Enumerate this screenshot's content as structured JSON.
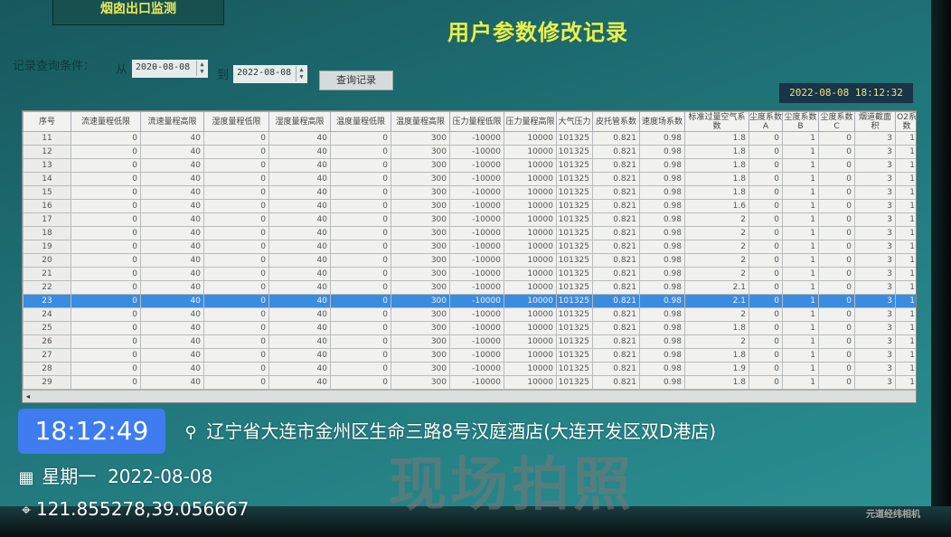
{
  "app": {
    "top_button": "烟囱出口监测",
    "title": "用户参数修改记录",
    "clock": "2022-08-08 18:12:32"
  },
  "query": {
    "label": "记录查询条件：",
    "from_label": "从",
    "from_date": "2020-08-08",
    "to_label": "到",
    "to_date": "2022-08-08",
    "button": "查询记录"
  },
  "table": {
    "headers": [
      "序号",
      "流速量程低限",
      "流速量程高限",
      "湿度量程低限",
      "湿度量程高限",
      "温度量程低限",
      "温度量程高限",
      "压力量程低限",
      "压力量程高限",
      "大气压力",
      "皮托管系数",
      "速度场系数",
      "标准过量空气系数",
      "尘度系数A",
      "尘度系数B",
      "尘度系数C",
      "烟道截面积",
      "O2系数"
    ],
    "selected_row": "23",
    "rows": [
      [
        "11",
        "0",
        "40",
        "0",
        "40",
        "0",
        "300",
        "-10000",
        "10000",
        "101325",
        "0.821",
        "0.98",
        "1.8",
        "0",
        "1",
        "0",
        "3",
        "1"
      ],
      [
        "12",
        "0",
        "40",
        "0",
        "40",
        "0",
        "300",
        "-10000",
        "10000",
        "101325",
        "0.821",
        "0.98",
        "1.8",
        "0",
        "1",
        "0",
        "3",
        "1"
      ],
      [
        "13",
        "0",
        "40",
        "0",
        "40",
        "0",
        "300",
        "-10000",
        "10000",
        "101325",
        "0.821",
        "0.98",
        "1.8",
        "0",
        "1",
        "0",
        "3",
        "1"
      ],
      [
        "14",
        "0",
        "40",
        "0",
        "40",
        "0",
        "300",
        "-10000",
        "10000",
        "101325",
        "0.821",
        "0.98",
        "1.8",
        "0",
        "1",
        "0",
        "3",
        "1"
      ],
      [
        "15",
        "0",
        "40",
        "0",
        "40",
        "0",
        "300",
        "-10000",
        "10000",
        "101325",
        "0.821",
        "0.98",
        "1.8",
        "0",
        "1",
        "0",
        "3",
        "1"
      ],
      [
        "16",
        "0",
        "40",
        "0",
        "40",
        "0",
        "300",
        "-10000",
        "10000",
        "101325",
        "0.821",
        "0.98",
        "1.6",
        "0",
        "1",
        "0",
        "3",
        "1"
      ],
      [
        "17",
        "0",
        "40",
        "0",
        "40",
        "0",
        "300",
        "-10000",
        "10000",
        "101325",
        "0.821",
        "0.98",
        "2",
        "0",
        "1",
        "0",
        "3",
        "1"
      ],
      [
        "18",
        "0",
        "40",
        "0",
        "40",
        "0",
        "300",
        "-10000",
        "10000",
        "101325",
        "0.821",
        "0.98",
        "2",
        "0",
        "1",
        "0",
        "3",
        "1"
      ],
      [
        "19",
        "0",
        "40",
        "0",
        "40",
        "0",
        "300",
        "-10000",
        "10000",
        "101325",
        "0.821",
        "0.98",
        "2",
        "0",
        "1",
        "0",
        "3",
        "1"
      ],
      [
        "20",
        "0",
        "40",
        "0",
        "40",
        "0",
        "300",
        "-10000",
        "10000",
        "101325",
        "0.821",
        "0.98",
        "2",
        "0",
        "1",
        "0",
        "3",
        "1"
      ],
      [
        "21",
        "0",
        "40",
        "0",
        "40",
        "0",
        "300",
        "-10000",
        "10000",
        "101325",
        "0.821",
        "0.98",
        "2",
        "0",
        "1",
        "0",
        "3",
        "1"
      ],
      [
        "22",
        "0",
        "40",
        "0",
        "40",
        "0",
        "300",
        "-10000",
        "10000",
        "101325",
        "0.821",
        "0.98",
        "2.1",
        "0",
        "1",
        "0",
        "3",
        "1"
      ],
      [
        "23",
        "0",
        "40",
        "0",
        "40",
        "0",
        "300",
        "-10000",
        "10000",
        "101325",
        "0.821",
        "0.98",
        "2.1",
        "0",
        "1",
        "0",
        "3",
        "1"
      ],
      [
        "24",
        "0",
        "40",
        "0",
        "40",
        "0",
        "300",
        "-10000",
        "10000",
        "101325",
        "0.821",
        "0.98",
        "2",
        "0",
        "1",
        "0",
        "3",
        "1"
      ],
      [
        "25",
        "0",
        "40",
        "0",
        "40",
        "0",
        "300",
        "-10000",
        "10000",
        "101325",
        "0.821",
        "0.98",
        "1.8",
        "0",
        "1",
        "0",
        "3",
        "1"
      ],
      [
        "26",
        "0",
        "40",
        "0",
        "40",
        "0",
        "300",
        "-10000",
        "10000",
        "101325",
        "0.821",
        "0.98",
        "2",
        "0",
        "1",
        "0",
        "3",
        "1"
      ],
      [
        "27",
        "0",
        "40",
        "0",
        "40",
        "0",
        "300",
        "-10000",
        "10000",
        "101325",
        "0.821",
        "0.98",
        "1.8",
        "0",
        "1",
        "0",
        "3",
        "1"
      ],
      [
        "28",
        "0",
        "40",
        "0",
        "40",
        "0",
        "300",
        "-10000",
        "10000",
        "101325",
        "0.821",
        "0.98",
        "1.9",
        "0",
        "1",
        "0",
        "3",
        "1"
      ],
      [
        "29",
        "0",
        "40",
        "0",
        "40",
        "0",
        "300",
        "-10000",
        "10000",
        "101325",
        "0.821",
        "0.98",
        "1.8",
        "0",
        "1",
        "0",
        "3",
        "1"
      ]
    ]
  },
  "watermark": "现场拍照",
  "overlay": {
    "time": "18:12:49",
    "address": "辽宁省大连市金州区生命三路8号汉庭酒店(大连开发区双D港店)",
    "weekday": "星期一",
    "date": "2022-08-08",
    "coords": "121.855278,39.056667",
    "brand": "元道经纬相机",
    "location_icon": "map-pin-icon",
    "date_icon": "calendar-icon",
    "coords_icon": "crosshair-icon"
  },
  "colors": {
    "screen": "#1f7377",
    "title": "#e9f04a",
    "selected_row": "#3a8ce0",
    "time_badge": "#3f7cf0"
  }
}
